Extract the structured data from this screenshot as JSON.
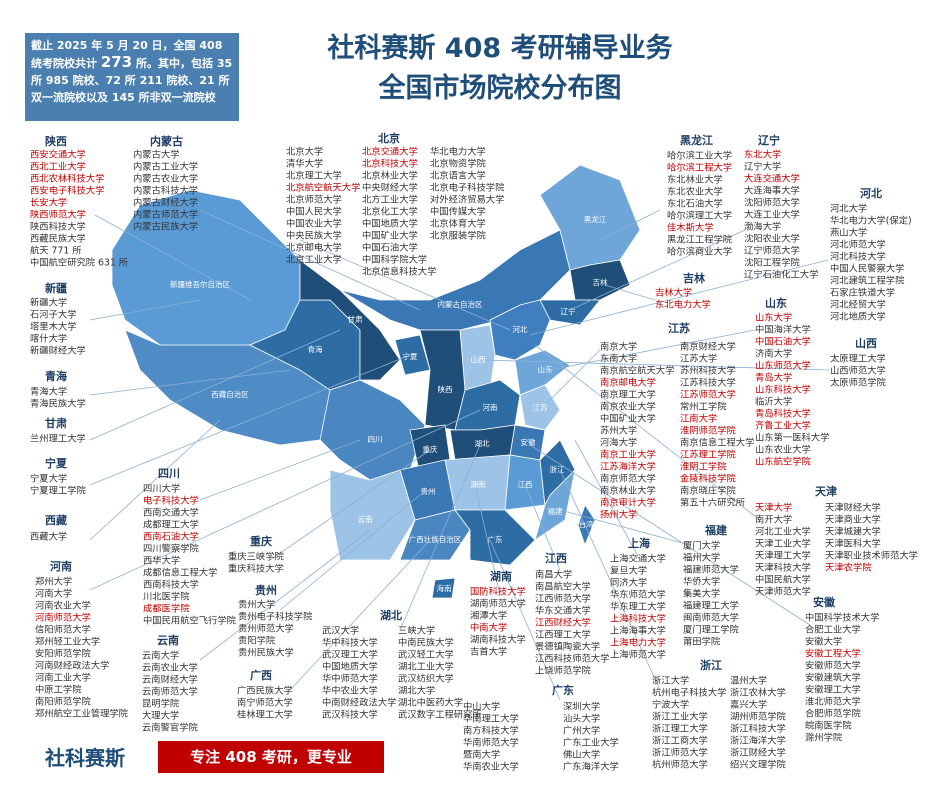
{
  "header": {
    "note": [
      "截止 2025 年 5 月 20 日，全国 408 统考院校共计 ",
      "273",
      " 所。其中，包括 35 所 985 院校、72 所 211 院校、21 所双一流院校以及 145 所非双一流院校"
    ],
    "title_line1": "社科赛斯 408 考研辅导业务",
    "title_line2": "全国市场院校分布图"
  },
  "regions": [
    {
      "name": "陕西",
      "columns": [
        [
          {
            "name": "西安交通大学",
            "color": "#c00000"
          },
          {
            "name": "西北工业大学",
            "color": "#c00000"
          },
          {
            "name": "西北农林科技大学",
            "color": "#c00000"
          },
          {
            "name": "西安电子科技大学",
            "color": "#c00000"
          },
          {
            "name": "长安大学",
            "color": "#c00000"
          },
          {
            "name": "陕西师范大学",
            "color": "#c00000"
          },
          "陕西科技大学",
          "西藏民族大学",
          "航天 771 所",
          "中国航空研究院 631 所"
        ]
      ]
    },
    {
      "name": "内蒙古",
      "columns": [
        [
          "内蒙古大学",
          "内蒙古工业大学",
          "内蒙古农业大学",
          "内蒙古科技大学",
          "内蒙古财经大学",
          "内蒙古师范大学",
          "内蒙古民族大学"
        ]
      ]
    },
    {
      "name": "北京",
      "columns": [
        [
          "北京大学",
          "清华大学",
          "北京理工大学",
          {
            "name": "北京航空航天大学",
            "color": "#c00000"
          },
          "北京师范大学",
          "中国人民大学",
          "中国农业大学",
          "中央民族大学",
          "北京邮电大学",
          "北京工业大学"
        ],
        [
          {
            "name": "北京交通大学",
            "color": "#c00000"
          },
          {
            "name": "北京科技大学",
            "color": "#c00000"
          },
          "北京林业大学",
          "中央财经大学",
          "北方工业大学",
          "北京化工大学",
          "中国地质大学",
          "中国矿业大学",
          "中国石油大学",
          "中国科学院大学",
          "北京信息科技大学"
        ],
        [
          "华北电力大学",
          "北京物资学院",
          "北京语言大学",
          "北京电子科技学院",
          "对外经济贸易大学",
          "中国传媒大学",
          "北京体育大学",
          "北京服装学院"
        ]
      ]
    },
    {
      "name": "黑龙江",
      "columns": [
        [
          "哈尔滨工业大学",
          {
            "name": "哈尔滨工程大学",
            "color": "#c00000"
          },
          "东北林业大学",
          "东北农业大学",
          "东北石油大学",
          "哈尔滨理工大学",
          {
            "name": "佳木斯大学",
            "color": "#c00000"
          },
          "黑龙江工程学院",
          "哈尔滨商业大学"
        ]
      ]
    },
    {
      "name": "辽宁",
      "columns": [
        [
          {
            "name": "东北大学",
            "color": "#c00000"
          },
          "辽宁大学",
          {
            "name": "大连交通大学",
            "color": "#c00000"
          },
          "大连海事大学",
          "沈阳师范大学",
          "大连工业大学",
          "渤海大学",
          "沈阳农业大学",
          "辽宁师范大学",
          "沈阳工程学院",
          "辽宁石油化工大学"
        ]
      ]
    },
    {
      "name": "河北",
      "columns": [
        [
          "河北大学",
          "华北电力大学(保定)",
          "燕山大学",
          "河北师范大学",
          "河北科技大学",
          "中国人民警察大学",
          "河北建筑工程学院",
          "石家庄铁道大学",
          "河北经贸大学",
          "河北地质大学"
        ]
      ]
    },
    {
      "name": "吉林",
      "columns": [
        [
          {
            "name": "吉林大学",
            "color": "#c00000"
          },
          {
            "name": "东北电力大学",
            "color": "#c00000"
          }
        ]
      ]
    },
    {
      "name": "山东",
      "columns": [
        [
          {
            "name": "山东大学",
            "color": "#c00000"
          },
          "中国海洋大学",
          {
            "name": "中国石油大学",
            "color": "#c00000"
          },
          "济南大学",
          {
            "name": "山东师范大学",
            "color": "#c00000"
          },
          {
            "name": "青岛大学",
            "color": "#c00000"
          },
          {
            "name": "山东科技大学",
            "color": "#c00000"
          },
          "临沂大学",
          {
            "name": "青岛科技大学",
            "color": "#c00000"
          },
          {
            "name": "齐鲁工业大学",
            "color": "#c00000"
          },
          "山东第一医科大学",
          "山东农业大学",
          {
            "name": "山东航空学院",
            "color": "#c00000"
          }
        ]
      ]
    },
    {
      "name": "山西",
      "columns": [
        [
          "太原理工大学",
          "山西师范大学",
          "太原师范学院"
        ]
      ]
    },
    {
      "name": "新疆",
      "columns": [
        [
          "新疆大学",
          "石河子大学",
          "塔里木大学",
          "喀什大学",
          "新疆财经大学"
        ]
      ]
    },
    {
      "name": "青海",
      "columns": [
        [
          "青海大学",
          "青海民族大学"
        ]
      ]
    },
    {
      "name": "甘肃",
      "columns": [
        [
          "兰州理工大学"
        ]
      ]
    },
    {
      "name": "宁夏",
      "columns": [
        [
          "宁夏大学",
          "宁夏理工学院"
        ]
      ]
    },
    {
      "name": "西藏",
      "columns": [
        [
          "西藏大学"
        ]
      ]
    },
    {
      "name": "四川",
      "columns": [
        [
          "四川大学",
          {
            "name": "电子科技大学",
            "color": "#c00000"
          },
          "西南交通大学",
          "成都理工大学",
          {
            "name": "西南石油大学",
            "color": "#c00000"
          },
          "四川警察学院",
          "西华大学",
          "成都信息工程大学",
          "西南科技大学",
          "川北医学院",
          {
            "name": "成都医学院",
            "color": "#c00000"
          },
          "中国民用航空飞行学院"
        ]
      ]
    },
    {
      "name": "重庆",
      "columns": [
        [
          "重庆三峡学院",
          "重庆科技大学"
        ]
      ]
    },
    {
      "name": "河南",
      "columns": [
        [
          "郑州大学",
          "河南大学",
          "河南农业大学",
          {
            "name": "河南师范大学",
            "color": "#c00000"
          },
          "信阳师范大学",
          "郑州轻工业大学",
          "安阳师范学院",
          "河南财经政法大学",
          "河南工业大学",
          "中原工学院",
          "南阳师范学院",
          "郑州航空工业管理学院"
        ]
      ]
    },
    {
      "name": "贵州",
      "columns": [
        [
          "贵州大学",
          "贵州电子科技学院",
          "贵州师范大学",
          "贵阳学院",
          "贵州民族大学"
        ]
      ]
    },
    {
      "name": "云南",
      "columns": [
        [
          "云南大学",
          "云南农业大学",
          "云南财经大学",
          "云南师范大学",
          "昆明学院",
          "大理大学",
          "云南警官学院"
        ]
      ]
    },
    {
      "name": "广西",
      "columns": [
        [
          "广西民族大学",
          "南宁师范大学",
          "桂林理工大学"
        ]
      ]
    },
    {
      "name": "湖北",
      "columns": [
        [
          "武汉大学",
          "华中科技大学",
          "武汉理工大学",
          "中国地质大学",
          "华中师范大学",
          "华中农业大学",
          "中南财经政法大学",
          "武汉科技大学"
        ],
        [
          "三峡大学",
          "中南民族大学",
          "武汉轻工大学",
          "湖北工业大学",
          "武汉纺织大学",
          "湖北大学",
          "湖北中医药大学",
          "武汉数字工程研究所"
        ]
      ]
    },
    {
      "name": "湖南",
      "columns": [
        [
          {
            "name": "国防科技大学",
            "color": "#c00000"
          },
          "湖南师范大学",
          "湘潭大学",
          {
            "name": "中南大学",
            "color": "#c00000"
          },
          "湖南科技大学",
          "吉首大学"
        ]
      ]
    },
    {
      "name": "江西",
      "columns": [
        [
          "南昌大学",
          "南昌航空大学",
          "江西师范大学",
          "华东交通大学",
          {
            "name": "江西财经大学",
            "color": "#c00000"
          },
          "江西理工大学",
          "景德镇陶瓷大学",
          "江西科技师范大学",
          "上饶师范学院"
        ]
      ]
    },
    {
      "name": "广东",
      "columns": [
        [
          "中山大学",
          "华南理工大学",
          "南方科技大学",
          "华南师范大学",
          "暨南大学",
          "华南农业大学"
        ],
        [
          "深圳大学",
          "汕头大学",
          "广州大学",
          "广东工业大学",
          "佛山大学",
          "广东海洋大学"
        ]
      ]
    },
    {
      "name": "江苏",
      "columns": [
        [
          "南京大学",
          "东南大学",
          "南京航空航天大学",
          {
            "name": "南京邮电大学",
            "color": "#c00000"
          },
          "南京理工大学",
          "南京农业大学",
          "中国矿业大学",
          "苏州大学",
          "河海大学",
          {
            "name": "南京工业大学",
            "color": "#c00000"
          },
          {
            "name": "江苏海洋大学",
            "color": "#c00000"
          },
          "南京师范大学",
          "南京林业大学",
          {
            "name": "南京审计大学",
            "color": "#c00000"
          },
          {
            "name": "扬州大学",
            "color": "#c00000"
          }
        ],
        [
          "南京财经大学",
          "江苏大学",
          "苏州科技大学",
          "江苏科技大学",
          {
            "name": "江苏师范大学",
            "color": "#c00000"
          },
          "常州工学院",
          {
            "name": "江南大学",
            "color": "#c00000"
          },
          {
            "name": "淮阴师范学院",
            "color": "#c00000"
          },
          "南京信息工程大学",
          {
            "name": "江苏理工学院",
            "color": "#c00000"
          },
          {
            "name": "淮阴工学院",
            "color": "#c00000"
          },
          {
            "name": "金陵科技学院",
            "color": "#c00000"
          },
          "南京晓庄学院",
          "第五十六研究所"
        ]
      ]
    },
    {
      "name": "上海",
      "columns": [
        [
          "上海交通大学",
          "复旦大学",
          "同济大学",
          "华东师范大学",
          "华东理工大学",
          {
            "name": "上海科技大学",
            "color": "#c00000"
          },
          "上海海事大学",
          {
            "name": "上海电力大学",
            "color": "#c00000"
          },
          "上海师范大学"
        ]
      ]
    },
    {
      "name": "福建",
      "columns": [
        [
          "厦门大学",
          "福州大学",
          "福建师范大学",
          "华侨大学",
          "集美大学",
          "福建理工大学",
          "闽南师范大学",
          "厦门理工学院",
          "莆田学院"
        ]
      ]
    },
    {
      "name": "天津",
      "columns": [
        [
          {
            "name": "天津大学",
            "color": "#c00000"
          },
          "南开大学",
          "河北工业大学",
          "天津工业大学",
          "天津理工大学",
          "天津科技大学",
          "中国民航大学",
          "天津师范大学"
        ],
        [
          "天津财经大学",
          "天津商业大学",
          "天津城建大学",
          "天津医科大学",
          "天津职业技术师范大学",
          {
            "name": "天津农学院",
            "color": "#c00000"
          }
        ]
      ]
    },
    {
      "name": "安徽",
      "columns": [
        [
          "中国科学技术大学",
          "合肥工业大学",
          "安徽大学",
          {
            "name": "安徽工程大学",
            "color": "#c00000"
          },
          "安徽师范大学",
          "安徽建筑大学",
          "安徽理工大学",
          "淮北师范大学",
          "合肥师范学院",
          "皖南医学院",
          "滁州学院"
        ]
      ]
    },
    {
      "name": "浙江",
      "columns": [
        [
          "浙江大学",
          "杭州电子科技大学",
          "宁波大学",
          "浙江工业大学",
          "浙江理工大学",
          "浙江工商大学",
          "浙江师范大学",
          "杭州师范大学"
        ],
        [
          "温州大学",
          "浙江农林大学",
          "嘉兴大学",
          "湖州师范学院",
          "浙江科技大学",
          "浙江海洋大学",
          "浙江财经大学",
          "绍兴文理学院"
        ]
      ]
    }
  ],
  "map_labels": [
    "新疆维吾尔自治区",
    "西藏自治区",
    "青海",
    "甘肃",
    "内蒙古自治区",
    "黑龙江",
    "吉林",
    "辽宁",
    "河北",
    "山西",
    "陕西",
    "宁夏",
    "四川",
    "重庆",
    "河南",
    "山东",
    "江苏",
    "安徽",
    "湖北",
    "湖南",
    "江西",
    "浙江",
    "福建",
    "贵州",
    "云南",
    "广西壮族自治区",
    "广东",
    "台湾",
    "海南"
  ],
  "footer": {
    "brand": "社科赛斯",
    "slogan": "专注 408 考研，更专业"
  }
}
